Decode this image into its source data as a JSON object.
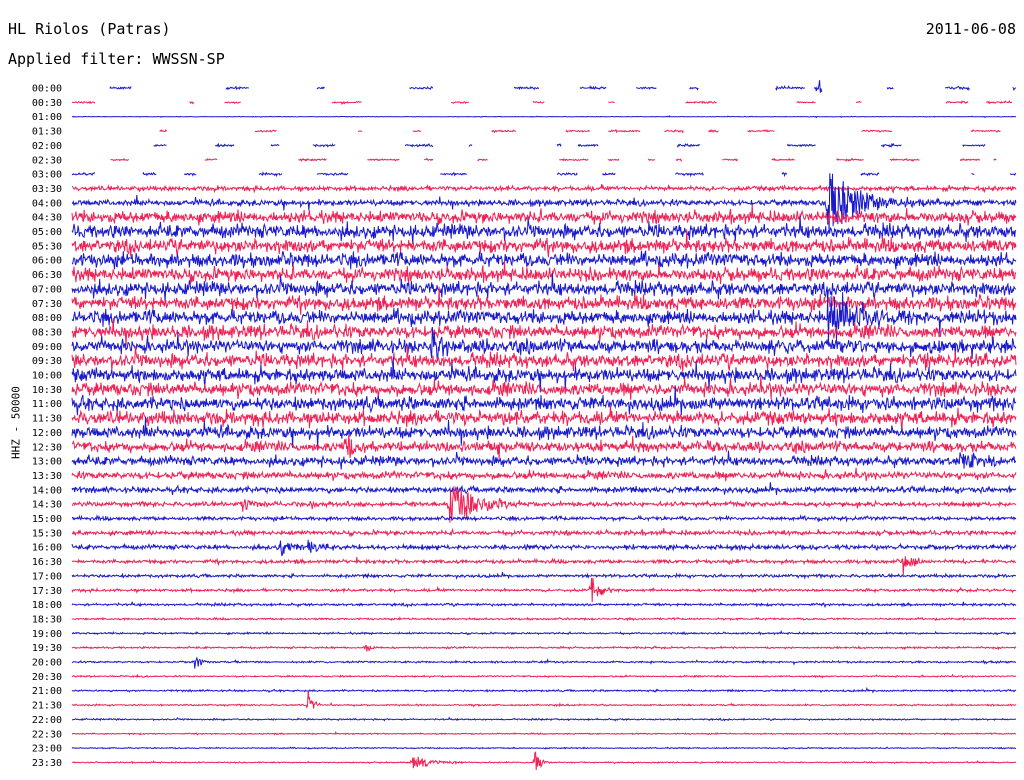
{
  "header": {
    "station": "HL Riolos (Patras)",
    "filter_text": "Applied filter: WWSSN-SP",
    "date": "2011-06-08"
  },
  "colors": {
    "trace_a": "#1a1acc",
    "trace_b": "#ee2255"
  },
  "chart_data": {
    "type": "line",
    "title": "HL Riolos (Patras)",
    "subtitle": "Applied filter: WWSSN-SP",
    "date": "2011-06-08",
    "ylabel": "HHZ - 50000",
    "xlabel": "",
    "rows": [
      "00:00",
      "00:30",
      "01:00",
      "01:30",
      "02:00",
      "02:30",
      "03:00",
      "03:30",
      "04:00",
      "04:30",
      "05:00",
      "05:30",
      "06:00",
      "06:30",
      "07:00",
      "07:30",
      "08:00",
      "08:30",
      "09:00",
      "09:30",
      "10:00",
      "10:30",
      "11:00",
      "11:30",
      "12:00",
      "12:30",
      "13:00",
      "13:30",
      "14:00",
      "14:30",
      "15:00",
      "15:30",
      "16:00",
      "16:30",
      "17:00",
      "17:30",
      "18:00",
      "18:30",
      "19:00",
      "19:30",
      "20:00",
      "20:30",
      "21:00",
      "21:30",
      "22:00",
      "22:30",
      "23:00",
      "23:30"
    ],
    "noise_level": [
      0.8,
      0.6,
      0.2,
      0.6,
      0.8,
      0.6,
      0.8,
      1.5,
      2,
      4,
      4.5,
      4.5,
      4.5,
      4.5,
      4.5,
      4.5,
      4.5,
      4.5,
      4.5,
      4.5,
      4.5,
      4.5,
      4.5,
      4.5,
      4,
      3.5,
      3,
      2.5,
      2,
      1.5,
      1.2,
      1.5,
      1.5,
      1.2,
      1,
      0.9,
      0.8,
      0.6,
      0.6,
      0.6,
      0.6,
      0.5,
      0.6,
      0.5,
      0.5,
      0.4,
      0.4,
      0.4
    ],
    "gap_rows": [
      "00:00",
      "00:30",
      "01:30",
      "02:00",
      "02:30",
      "03:00"
    ],
    "events": [
      {
        "row": "00:00",
        "t": 0.79,
        "amp": 12,
        "w": 0.004
      },
      {
        "row": "04:00",
        "t": 0.8,
        "amp": 40,
        "w": 0.03
      },
      {
        "row": "08:00",
        "t": 0.8,
        "amp": 30,
        "w": 0.03
      },
      {
        "row": "09:00",
        "t": 0.38,
        "amp": 14,
        "w": 0.02
      },
      {
        "row": "09:30",
        "t": 0.9,
        "amp": 12,
        "w": 0.01
      },
      {
        "row": "12:30",
        "t": 0.29,
        "amp": 14,
        "w": 0.01
      },
      {
        "row": "13:00",
        "t": 0.94,
        "amp": 14,
        "w": 0.015
      },
      {
        "row": "14:30",
        "t": 0.4,
        "amp": 22,
        "w": 0.03
      },
      {
        "row": "14:30",
        "t": 0.18,
        "amp": 8,
        "w": 0.01
      },
      {
        "row": "16:00",
        "t": 0.22,
        "amp": 10,
        "w": 0.01
      },
      {
        "row": "16:00",
        "t": 0.25,
        "amp": 10,
        "w": 0.015
      },
      {
        "row": "16:30",
        "t": 0.88,
        "amp": 16,
        "w": 0.01
      },
      {
        "row": "17:30",
        "t": 0.55,
        "amp": 16,
        "w": 0.01
      },
      {
        "row": "19:30",
        "t": 0.31,
        "amp": 6,
        "w": 0.005
      },
      {
        "row": "20:00",
        "t": 0.13,
        "amp": 10,
        "w": 0.005
      },
      {
        "row": "21:30",
        "t": 0.25,
        "amp": 16,
        "w": 0.005
      },
      {
        "row": "23:30",
        "t": 0.36,
        "amp": 8,
        "w": 0.02
      },
      {
        "row": "23:30",
        "t": 0.49,
        "amp": 18,
        "w": 0.005
      }
    ],
    "grid": false,
    "legend": "none"
  }
}
